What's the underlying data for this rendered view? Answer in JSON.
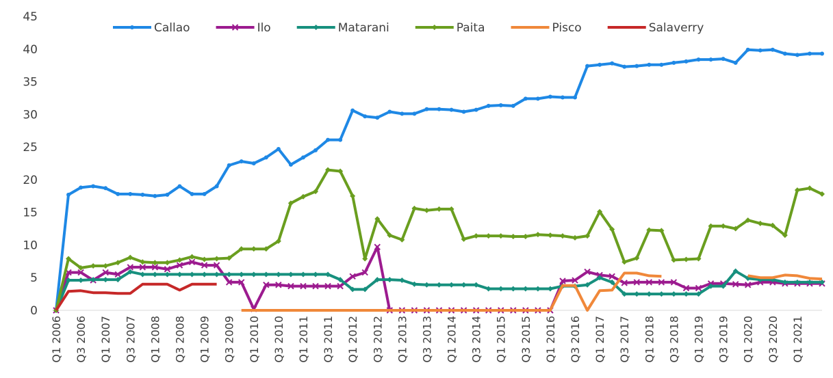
{
  "chart_data": {
    "type": "line",
    "categories": [
      "Q1 2006",
      null,
      "Q3 2006",
      null,
      "Q1 2007",
      null,
      "Q3 2007",
      null,
      "Q1 2008",
      null,
      "Q3 2008",
      null,
      "Q1 2009",
      null,
      "Q3 2009",
      null,
      "Q1 2010",
      null,
      "Q3 2010",
      null,
      "Q1 2011",
      null,
      "Q3 2011",
      null,
      "Q1 2012",
      null,
      "Q3 2012",
      null,
      "Q1 2013",
      null,
      "Q3 2013",
      null,
      "Q1 2014",
      null,
      "Q3 2014",
      null,
      "Q1 2015",
      null,
      "Q3 2015",
      null,
      "Q1 2016",
      null,
      "Q3 2016",
      null,
      "Q1 2017",
      null,
      "Q3 2017",
      null,
      "Q1 2018",
      null,
      "Q3 2018",
      null,
      "Q1 2019",
      null,
      "Q3 2019",
      null,
      "Q1 2020",
      null,
      "Q3 2020",
      null,
      "Q1 2021",
      null,
      null
    ],
    "series": [
      {
        "name": "Callao",
        "color": "#1e88e5",
        "marker": "circle",
        "values": [
          0,
          17.7,
          18.8,
          19,
          18.7,
          17.8,
          17.8,
          17.7,
          17.5,
          17.7,
          19,
          17.8,
          17.8,
          19,
          22.2,
          22.8,
          22.5,
          23.4,
          24.7,
          22.3,
          23.4,
          24.5,
          26.1,
          26.1,
          30.6,
          29.7,
          29.5,
          30.4,
          30.1,
          30.1,
          30.8,
          30.8,
          30.7,
          30.4,
          30.7,
          31.3,
          31.4,
          31.3,
          32.4,
          32.4,
          32.7,
          32.6,
          32.6,
          37.4,
          37.6,
          37.8,
          37.3,
          37.4,
          37.6,
          37.6,
          37.9,
          38.1,
          38.4,
          38.4,
          38.5,
          37.9,
          39.9,
          39.8,
          39.9,
          39.3,
          39.1,
          39.3,
          39.3
        ]
      },
      {
        "name": "Ilo",
        "color": "#9c1b8f",
        "marker": "x",
        "values": [
          0,
          5.8,
          5.8,
          4.6,
          5.8,
          5.5,
          6.6,
          6.6,
          6.6,
          6.3,
          6.9,
          7.4,
          6.9,
          6.9,
          4.3,
          4.3,
          0.2,
          3.9,
          3.9,
          3.7,
          3.7,
          3.7,
          3.7,
          3.7,
          5.2,
          5.8,
          9.7,
          0,
          0,
          0,
          0,
          0,
          0,
          0,
          0,
          0,
          0,
          0,
          0,
          0,
          0,
          4.5,
          4.6,
          5.9,
          5.4,
          5.2,
          4.2,
          4.3,
          4.3,
          4.3,
          4.3,
          3.4,
          3.4,
          4.1,
          4.1,
          4.0,
          3.9,
          4.3,
          4.3,
          4.1,
          4.1,
          4.1,
          4.1
        ]
      },
      {
        "name": "Matarani",
        "color": "#17907e",
        "marker": "diamond",
        "values": [
          0,
          4.6,
          4.6,
          4.7,
          4.7,
          4.7,
          5.9,
          5.5,
          5.5,
          5.5,
          5.5,
          5.5,
          5.5,
          5.5,
          5.5,
          5.5,
          5.5,
          5.5,
          5.5,
          5.5,
          5.5,
          5.5,
          5.5,
          4.7,
          3.2,
          3.2,
          4.7,
          4.7,
          4.6,
          4.0,
          3.9,
          3.9,
          3.9,
          3.9,
          3.9,
          3.3,
          3.3,
          3.3,
          3.3,
          3.3,
          3.3,
          3.7,
          3.7,
          3.9,
          5.0,
          4.3,
          2.5,
          2.5,
          2.5,
          2.5,
          2.5,
          2.5,
          2.5,
          3.7,
          3.7,
          6.0,
          4.9,
          4.7,
          4.7,
          4.3,
          4.3,
          4.3,
          4.3
        ]
      },
      {
        "name": "Paita",
        "color": "#6a9e1f",
        "marker": "diamond",
        "values": [
          0,
          7.9,
          6.5,
          6.8,
          6.8,
          7.3,
          8.1,
          7.4,
          7.3,
          7.3,
          7.7,
          8.2,
          7.8,
          7.9,
          8.0,
          9.4,
          9.4,
          9.4,
          10.6,
          16.4,
          17.4,
          18.2,
          21.5,
          21.3,
          17.5,
          7.9,
          14.0,
          11.5,
          10.8,
          15.6,
          15.3,
          15.5,
          15.5,
          10.9,
          11.4,
          11.4,
          11.4,
          11.3,
          11.3,
          11.6,
          11.5,
          11.4,
          11.1,
          11.4,
          15.1,
          12.4,
          7.4,
          8.0,
          12.3,
          12.2,
          7.7,
          7.8,
          7.9,
          12.9,
          12.9,
          12.5,
          13.8,
          13.3,
          13.0,
          11.5,
          18.4,
          18.7,
          17.8
        ]
      },
      {
        "name": "Pisco",
        "color": "#f0883a",
        "marker": "none",
        "values": [
          null,
          null,
          null,
          null,
          null,
          null,
          null,
          null,
          null,
          null,
          null,
          null,
          null,
          null,
          null,
          0,
          0,
          0,
          0,
          0,
          0,
          0,
          0,
          0,
          0,
          0,
          0,
          0,
          0,
          0,
          0,
          0,
          0,
          0,
          0,
          0,
          0,
          0,
          0,
          0,
          0,
          3.8,
          3.8,
          0,
          3.0,
          3.1,
          5.7,
          5.7,
          5.3,
          5.2,
          null,
          null,
          null,
          null,
          null,
          null,
          5.3,
          5.0,
          5.0,
          5.4,
          5.3,
          4.9,
          4.8
        ]
      },
      {
        "name": "Salaverry",
        "color": "#c62828",
        "marker": "none",
        "values": [
          0,
          2.9,
          3.0,
          2.7,
          2.7,
          2.6,
          2.6,
          4.0,
          4.0,
          4.0,
          3.1,
          4.0,
          4.0,
          4.0,
          null,
          null,
          null,
          null,
          null,
          null,
          null,
          null,
          null,
          null,
          null,
          null,
          null,
          null,
          null,
          null,
          null,
          null,
          null,
          null,
          null,
          null,
          null,
          null,
          null,
          null,
          null,
          null,
          null,
          null,
          null,
          null,
          null,
          null,
          null,
          null,
          null,
          null,
          null,
          null,
          null,
          null,
          null,
          null,
          null,
          null,
          null,
          null,
          null
        ]
      }
    ],
    "ylim": [
      0,
      45
    ],
    "yticks": [
      0,
      5,
      10,
      15,
      20,
      25,
      30,
      35,
      40,
      45
    ],
    "grid": false,
    "legend": "top"
  }
}
